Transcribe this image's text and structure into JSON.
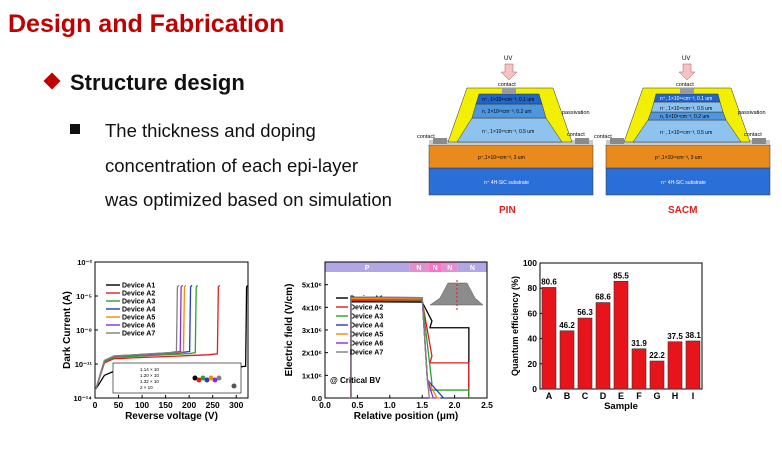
{
  "header": {
    "title": "Design and Fabrication",
    "subtitle": "Structure design",
    "lines": [
      "The thickness and doping",
      "concentration of each epi-layer",
      "was optimized based on simulation"
    ]
  },
  "diagrams": {
    "pin": {
      "label": "PIN",
      "uv": "UV",
      "contact_top": "contact",
      "passivation": "passivation",
      "contact_left": "contact",
      "contact_right": "contact",
      "layers": [
        "n⁺, 1×10¹⁹cm⁻³,  0.1 um",
        "n, 2×10¹⁵cm⁻³,  0.2 um",
        "n⁻, 1×10¹⁵cm⁻³,  0.5 um",
        "p⁺,1×10¹⁹cm⁻³,  3 um",
        "n⁺ 4H-SiC substrate"
      ]
    },
    "sacm": {
      "label": "SACM",
      "uv": "UV",
      "contact_top": "contact",
      "passivation": "passivation",
      "contact_left": "contact",
      "contact_right": "contact",
      "layers": [
        "n⁺, 1×10¹⁹cm⁻³,  0.1 um",
        "n⁻, 1×10¹⁵cm⁻³,  0.5 um",
        "n, 5×10¹⁷cm⁻³,  0.2 um",
        "n⁻, 1×10¹⁵cm⁻³,  0.5 um",
        "p⁺,1×10¹⁹cm⁻³,  3 um",
        "n⁺ 4H-SiC substrate"
      ]
    }
  },
  "chart_data": [
    {
      "type": "line",
      "xlabel": "Reverse voltage (V)",
      "ylabel": "Dark Current (A)",
      "xlim": [
        0,
        325
      ],
      "ylim_exp": [
        -14,
        -2
      ],
      "xticks": [
        "0",
        "50",
        "100",
        "150",
        "200",
        "250",
        "300"
      ],
      "yticks": [
        "10⁻¹⁴",
        "10⁻¹¹",
        "10⁻⁸",
        "10⁻⁵",
        "10⁻²"
      ],
      "inset_labels": [
        "1.14 × 10",
        "1.20 × 10",
        "1.32 × 10",
        "2 × 10"
      ],
      "series": [
        {
          "name": "Device A1",
          "color": "#000000",
          "breakdown": 322,
          "floor": -11.7
        },
        {
          "name": "Device A2",
          "color": "#e31a1c",
          "breakdown": 262,
          "floor": -10.6
        },
        {
          "name": "Device A3",
          "color": "#2ca02c",
          "breakdown": 215,
          "floor": -10.5
        },
        {
          "name": "Device A4",
          "color": "#1f3fbf",
          "breakdown": 203,
          "floor": -10.4
        },
        {
          "name": "Device A5",
          "color": "#f08c00",
          "breakdown": 190,
          "floor": -10.4
        },
        {
          "name": "Device A6",
          "color": "#8a2be2",
          "breakdown": 183,
          "floor": -10.4
        },
        {
          "name": "Device A7",
          "color": "#808080",
          "breakdown": 175,
          "floor": -10.4
        }
      ]
    },
    {
      "type": "line",
      "xlabel": "Relative position (μm)",
      "ylabel": "Electric field (V/cm)",
      "xlim": [
        0,
        2.5
      ],
      "ylim": [
        0,
        6
      ],
      "xticks": [
        "0.0",
        "0.5",
        "1.0",
        "1.5",
        "2.0",
        "2.5"
      ],
      "yticks": [
        "0.0",
        "1x10⁶",
        "2x10⁶",
        "3x10⁶",
        "4x10⁶",
        "5x10⁶"
      ],
      "annotation": "@ Critical BV",
      "regions": [
        {
          "label": "P",
          "start": 0.0,
          "end": 1.3,
          "color": "#b3a6e6"
        },
        {
          "label": "N",
          "start": 1.3,
          "end": 1.6,
          "color": "#e48fd0"
        },
        {
          "label": "N",
          "start": 1.6,
          "end": 1.8,
          "color": "#ff70c8"
        },
        {
          "label": "N",
          "start": 1.8,
          "end": 2.05,
          "color": "#e48fd0"
        },
        {
          "label": "N",
          "start": 2.05,
          "end": 2.5,
          "color": "#b3a6e6"
        }
      ],
      "series": [
        {
          "name": "Device A1",
          "color": "#000000",
          "peak": 4.25,
          "plateau": 3.1,
          "drop": 2.22
        },
        {
          "name": "Device A2",
          "color": "#e31a1c",
          "peak": 4.3,
          "plateau": 1.55,
          "drop": 2.22
        },
        {
          "name": "Device A3",
          "color": "#2ca02c",
          "peak": 4.35,
          "plateau": 0.35,
          "drop": 2.22
        },
        {
          "name": "Device A4",
          "color": "#1f3fbf",
          "peak": 4.4,
          "plateau": 0.0,
          "drop": 1.88
        },
        {
          "name": "Device A5",
          "color": "#f08c00",
          "peak": 4.4,
          "plateau": 0.0,
          "drop": 1.78
        },
        {
          "name": "Device A6",
          "color": "#8a2be2",
          "peak": 4.45,
          "plateau": 0.0,
          "drop": 1.72
        },
        {
          "name": "Device A7",
          "color": "#808080",
          "peak": 4.45,
          "plateau": 0.0,
          "drop": 1.66
        }
      ]
    },
    {
      "type": "bar",
      "xlabel": "Sample",
      "ylabel": "Quantum efficiency (%)",
      "ylim": [
        0,
        100
      ],
      "yticks": [
        "0",
        "20",
        "40",
        "60",
        "80",
        "100"
      ],
      "categories": [
        "A",
        "B",
        "C",
        "D",
        "E",
        "F",
        "G",
        "H",
        "I"
      ],
      "values": [
        80.6,
        46.2,
        56.3,
        68.6,
        85.5,
        31.9,
        22.2,
        37.5,
        38.1
      ],
      "labels": [
        "80.6",
        "46.2",
        "56.3",
        "68.6",
        "85.5",
        "31.9",
        "22.2",
        "37.5",
        "38.1"
      ],
      "color": "#e8141b"
    }
  ]
}
